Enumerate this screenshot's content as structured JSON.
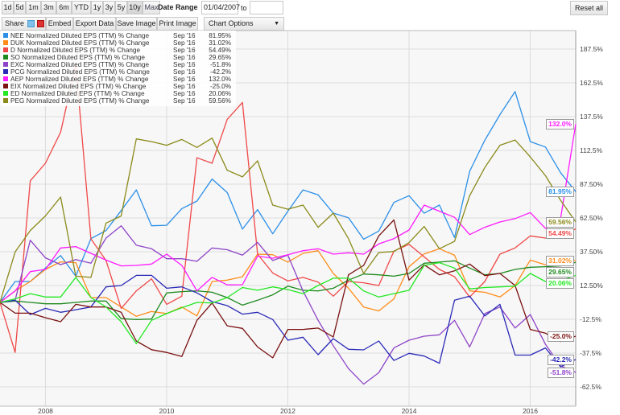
{
  "toolbar": {
    "ranges": [
      {
        "label": "1d"
      },
      {
        "label": "5d"
      },
      {
        "label": "1m"
      },
      {
        "label": "3m"
      },
      {
        "label": "6m"
      },
      {
        "label": "YTD"
      },
      {
        "label": "1y"
      },
      {
        "label": "3y"
      },
      {
        "label": "5y"
      },
      {
        "label": "10y",
        "active": true
      },
      {
        "label": "Max"
      }
    ],
    "date_range_label": "Date Range",
    "date_from": "01/04/2007",
    "to_label": "to",
    "date_to": "",
    "reset_label": "Reset all",
    "share_label": "Share",
    "embed_label": "Embed",
    "export_label": "Export Data",
    "save_label": "Save Image",
    "print_label": "Print Image",
    "chart_options_label": "Chart Options"
  },
  "chart_data": {
    "type": "line",
    "x_start": 2007.25,
    "x_step": 0.25,
    "x_ticks": [
      "2008",
      "2010",
      "2012",
      "2014",
      "2016"
    ],
    "x_tick_values": [
      2008,
      2010,
      2012,
      2014,
      2016
    ],
    "y_ticks": [
      187.5,
      162.5,
      137.5,
      112.5,
      87.5,
      62.5,
      37.5,
      12.5,
      -12.5,
      -37.5,
      -62.5
    ],
    "y_tick_labels": [
      "187.5%",
      "162.5%",
      "137.5%",
      "112.5%",
      "87.50%",
      "62.50%",
      "37.50%",
      "12.50%",
      "-12.5%",
      "-37.5%",
      "-62.5%"
    ],
    "ylim": [
      -75,
      200
    ],
    "grid": true,
    "legend_placement": "top-left",
    "series": [
      {
        "name": "NEE Normalized Diluted EPS (TTM) % Change",
        "date": "Sep '16",
        "last": "81.95%",
        "color": "#2b8fe8",
        "values": [
          0,
          15.5,
          15.5,
          25.4,
          34.7,
          19.4,
          47.2,
          53.2,
          68,
          83.3,
          56.7,
          57.1,
          69.4,
          75,
          91.3,
          81.3,
          54.2,
          68.7,
          50.8,
          67.5,
          83.3,
          79.6,
          66.1,
          62.7,
          46.8,
          52.8,
          74,
          79,
          66,
          72,
          48,
          97,
          120,
          139,
          156,
          119,
          115,
          96,
          81.95
        ]
      },
      {
        "name": "DUK Normalized Diluted EPS (TTM) % Change",
        "date": "Sep '16",
        "last": "31.02%",
        "color": "#ff8c1a",
        "values": [
          0,
          8.5,
          15.5,
          24.4,
          30,
          29.4,
          3.6,
          3.6,
          -3.4,
          -10.3,
          -6.7,
          -8.3,
          -3.4,
          -10,
          15.5,
          16.5,
          19,
          35.7,
          35.3,
          29.8,
          36.3,
          38.3,
          21.4,
          10.5,
          -3.4,
          -6.3,
          2.6,
          26.4,
          35.9,
          39.7,
          34.9,
          8.5,
          7.5,
          4,
          12.5,
          31.3,
          27.8,
          29,
          31.02
        ]
      },
      {
        "name": "D Normalized Diluted EPS (TTM) % Change",
        "date": "Sep '16",
        "last": "54.49%",
        "color": "#f04848",
        "values": [
          0,
          -37,
          90,
          103,
          126,
          176,
          47,
          31,
          -4.4,
          8.5,
          17.5,
          -1.4,
          4.6,
          107,
          103,
          135.5,
          148,
          35.7,
          21.8,
          15.9,
          18.5,
          15,
          4.6,
          15.5,
          14.5,
          12.5,
          38,
          43,
          33.7,
          24.4,
          19,
          4,
          15.5,
          35.7,
          40.3,
          49.2,
          47.6,
          48.8,
          54.49
        ]
      },
      {
        "name": "SO Normalized Diluted EPS (TTM) % Change",
        "date": "Sep '16",
        "last": "29.65%",
        "color": "#1e8a1e",
        "values": [
          0,
          1,
          0,
          -1,
          -1,
          0,
          1,
          1,
          -12,
          -12.7,
          -12.3,
          7,
          8,
          8.5,
          7.5,
          3.6,
          -2,
          1.6,
          5.6,
          12,
          9,
          8.5,
          10.5,
          16.5,
          21,
          20.4,
          19.4,
          21.4,
          29,
          29.8,
          30.8,
          25.4,
          20.4,
          21.4,
          24.4,
          26,
          26.4,
          27,
          29.65
        ]
      },
      {
        "name": "EXC Normalized Diluted EPS (TTM) % Change",
        "date": "Sep '16",
        "last": "-51.8%",
        "color": "#8e44c8",
        "values": [
          0,
          1.6,
          46,
          33,
          28,
          31.7,
          29,
          47.6,
          56.7,
          42.3,
          39.7,
          32.3,
          32.3,
          30.4,
          40.3,
          39,
          35,
          44.4,
          31,
          35,
          8.5,
          -13.3,
          -32,
          -49,
          -60.5,
          -52,
          -33.7,
          -28,
          -25,
          -24,
          -13.3,
          -33,
          -8.3,
          -3.4,
          -19,
          -9,
          -31,
          -47,
          -51.8
        ]
      },
      {
        "name": "PCG Normalized Diluted EPS (TTM) % Change",
        "date": "Sep '16",
        "last": "-42.2%",
        "color": "#2a2ab8",
        "values": [
          0,
          1.6,
          -9,
          -4.4,
          -7.3,
          -5.4,
          -3.4,
          11.5,
          12.5,
          20,
          20,
          10.5,
          11.5,
          7,
          0.6,
          -2.4,
          -8.7,
          -7.3,
          -12.7,
          -28,
          -25.8,
          -38.7,
          -26.8,
          -34.7,
          -35.1,
          -28.6,
          -43,
          -37.7,
          -39.7,
          -45,
          1.6,
          4.6,
          -10,
          -1.4,
          -39,
          -39,
          -33.7,
          -47.6,
          -42.2
        ]
      },
      {
        "name": "AEP Normalized Diluted EPS (TTM) % Change",
        "date": "Sep '16",
        "last": "132.0%",
        "color": "#ff1aff",
        "values": [
          0,
          8.5,
          22.8,
          24.4,
          40.3,
          41.3,
          36.3,
          31.3,
          27,
          27.4,
          28.4,
          35.7,
          27.4,
          8.5,
          18.5,
          13,
          13.1,
          34.3,
          32.7,
          35.3,
          38.3,
          39.7,
          35.7,
          36.7,
          35.7,
          43.3,
          47.2,
          53.6,
          72,
          67.5,
          63,
          50.2,
          55.6,
          59.5,
          62,
          66.5,
          54.8,
          62,
          132
        ]
      },
      {
        "name": "EIX Normalized Diluted EPS (TTM) % Change",
        "date": "Sep '16",
        "last": "-25.0%",
        "color": "#7a1010",
        "values": [
          0,
          -8,
          -8,
          -11.3,
          -14.3,
          -1.4,
          -3.4,
          -3.4,
          -7.3,
          -28.6,
          -35,
          -37,
          -40,
          -13.3,
          -0.4,
          -17.3,
          -19.2,
          -33,
          -41,
          -20,
          -20,
          -19,
          -25.6,
          20.4,
          27.4,
          49.2,
          61,
          16.5,
          27.8,
          20.4,
          23.4,
          28.4,
          19.8,
          21.4,
          12.5,
          -20,
          -22.8,
          -29,
          -25
        ]
      },
      {
        "name": "ED Normalized Diluted EPS (TTM) % Change",
        "date": "Sep '16",
        "last": "20.06%",
        "color": "#22e822",
        "values": [
          0,
          2.6,
          6.5,
          4,
          4,
          18.5,
          3.6,
          -3.4,
          -14.3,
          -30.5,
          -13.3,
          -8.3,
          -4,
          0,
          -0.4,
          3.6,
          11,
          9,
          11.5,
          9.5,
          6.5,
          12.5,
          17.9,
          17.9,
          8.5,
          4,
          6.5,
          9,
          27.4,
          29.4,
          25.4,
          10,
          11,
          11.5,
          12,
          21.4,
          15.5,
          16,
          20.06
        ]
      },
      {
        "name": "PEG Normalized Diluted EPS (TTM) % Change",
        "date": "Sep '16",
        "last": "59.56%",
        "color": "#8a8a1a",
        "values": [
          0,
          37.3,
          53.2,
          64,
          78,
          19.4,
          18.5,
          58.7,
          64,
          121,
          119,
          116.3,
          120.6,
          114.7,
          121.6,
          97.8,
          92.9,
          104.8,
          72,
          69,
          72,
          55.6,
          66.1,
          47.2,
          21.4,
          36.9,
          37.7,
          44.2,
          56.2,
          39.7,
          45.2,
          79,
          99.8,
          116.3,
          120.2,
          107.7,
          93.8,
          75.6,
          59.56
        ]
      }
    ]
  }
}
